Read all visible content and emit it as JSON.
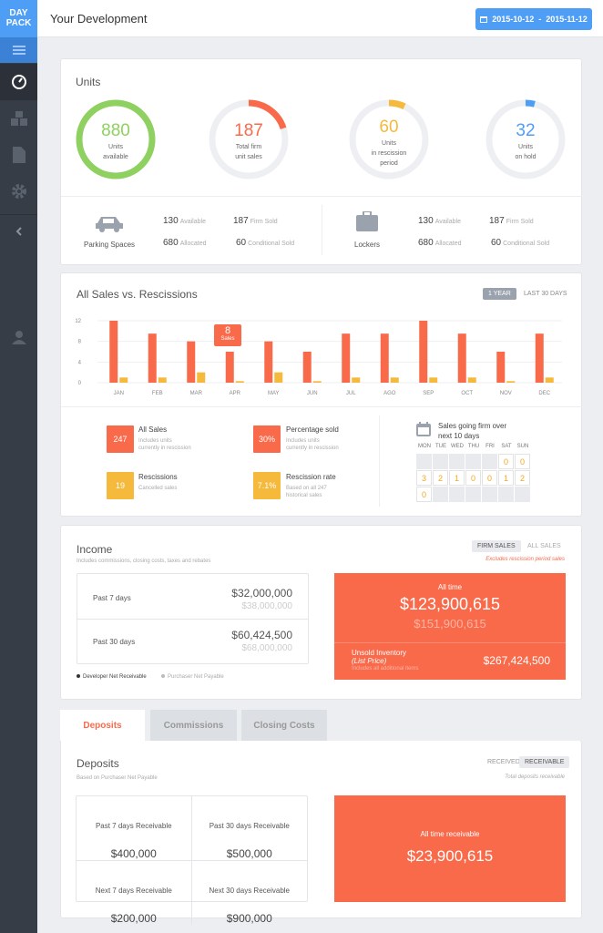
{
  "app": {
    "logo_line1": "DAY",
    "logo_line2": "PACK",
    "page_title": "Your Development",
    "date_range": "2015-10-12  -  2015-11-12"
  },
  "units": {
    "title": "Units",
    "rings": [
      {
        "value": "880",
        "label1": "Units",
        "label2": "available",
        "label3": "",
        "color": "#8fd160",
        "fraction": 1.0
      },
      {
        "value": "187",
        "label1": "Total firm",
        "label2": "unit sales",
        "label3": "",
        "color": "#f96a4b",
        "fraction": 0.2
      },
      {
        "value": "60",
        "label1": "Units",
        "label2": "in rescission",
        "label3": "period",
        "color": "#f5b93c",
        "fraction": 0.07
      },
      {
        "value": "32",
        "label1": "Units",
        "label2": "on hold",
        "label3": "",
        "color": "#4f9ef5",
        "fraction": 0.04
      }
    ],
    "parking": {
      "label": "Parking Spaces",
      "available": "130",
      "available_label": "Available",
      "allocated": "680",
      "allocated_label": "Allocated",
      "firm": "187",
      "firm_label": "Firm Sold",
      "conditional": "60",
      "conditional_label": "Conditional Sold"
    },
    "lockers": {
      "label": "Lockers",
      "available": "130",
      "available_label": "Available",
      "allocated": "680",
      "allocated_label": "Allocated",
      "firm": "187",
      "firm_label": "Firm Sold",
      "conditional": "60",
      "conditional_label": "Conditional Sold"
    }
  },
  "sales": {
    "title": "All Sales vs. Rescissions",
    "btn_year": "1 YEAR",
    "btn_30": "LAST 30 DAYS",
    "tooltip_value": "8",
    "tooltip_label": "Sales",
    "stats": [
      {
        "value": "247",
        "title": "All Sales",
        "sub1": "Includes units",
        "sub2": "currently in rescission",
        "color": "#f96a4b"
      },
      {
        "value": "30%",
        "title": "Percentage sold",
        "sub1": "Includes units",
        "sub2": "currently in rescission",
        "color": "#f96a4b"
      },
      {
        "value": "19",
        "title": "Rescissions",
        "sub1": "Cancelled sales",
        "sub2": "",
        "color": "#f5b93c"
      },
      {
        "value": "7.1%",
        "title": "Rescission rate",
        "sub1": "Based on all 247",
        "sub2": "historical sales",
        "color": "#f5b93c"
      }
    ],
    "calendar": {
      "title1": "Sales going firm over",
      "title2": "next 10 days",
      "days": [
        "MON",
        "TUE",
        "WED",
        "THU",
        "FRI",
        "SAT",
        "SUN"
      ],
      "row1": [
        "",
        "",
        "",
        "",
        "",
        "0",
        "0"
      ],
      "row2": [
        "3",
        "2",
        "1",
        "0",
        "0",
        "1",
        "2"
      ],
      "row3": [
        "0",
        "",
        "",
        "",
        "",
        "",
        ""
      ]
    }
  },
  "chart_data": {
    "type": "bar",
    "categories": [
      "JAN",
      "FEB",
      "MAR",
      "APR",
      "MAY",
      "JUN",
      "JUL",
      "AGO",
      "SEP",
      "OCT",
      "NOV",
      "DEC"
    ],
    "series": [
      {
        "name": "Sales",
        "values": [
          12,
          9.5,
          8,
          6,
          8,
          6,
          9.5,
          9.5,
          12,
          9.5,
          6,
          9.5
        ],
        "color": "#f96a4b"
      },
      {
        "name": "Rescissions",
        "values": [
          1,
          1,
          2,
          0.3,
          2,
          0.3,
          1,
          1,
          1,
          1,
          0.3,
          1
        ],
        "color": "#f5b93c"
      }
    ],
    "ylim": [
      0,
      12
    ],
    "yticks": [
      "0",
      "4",
      "8",
      "12"
    ]
  },
  "income": {
    "title": "Income",
    "subtitle": "Includes commissions, closing costs, taxes and rebates",
    "btn_firm": "FIRM SALES",
    "btn_all": "ALL SALES",
    "excludes": "Excludes rescission period sales",
    "p7_label": "Past 7 days",
    "p7_value": "$32,000,000",
    "p7_sub": "$38,000,000",
    "p30_label": "Past 30 days",
    "p30_value": "$60,424,500",
    "p30_sub": "$68,000,000",
    "legend1": "Developer Net Receivable",
    "legend2": "Purchaser Net Payable",
    "alltime_label": "All time",
    "alltime_value": "$123,900,615",
    "alltime_sub": "$151,900,615",
    "unsold_label": "Unsold Inventory",
    "unsold_sub": "(List Price)",
    "unsold_note": "Includes all additional items",
    "unsold_value": "$267,424,500"
  },
  "tabs": [
    "Deposits",
    "Commissions",
    "Closing Costs"
  ],
  "deposits": {
    "title": "Deposits",
    "subtitle": "Based on Purchaser Net Payable",
    "btn_received": "RECEIVED",
    "btn_receivable": "RECEIVABLE",
    "total_label": "Total deposits receivable",
    "cells": [
      {
        "label": "Past 7 days Receivable",
        "value": "$400,000"
      },
      {
        "label": "Past 30 days Receivable",
        "value": "$500,000"
      },
      {
        "label": "Next 7 days Receivable",
        "value": "$200,000"
      },
      {
        "label": "Next 30 days Receivable",
        "value": "$900,000"
      }
    ],
    "alltime_label": "All time receivable",
    "alltime_value": "$23,900,615"
  },
  "colors": {
    "accent": "#4f9ef5",
    "orange": "#f96a4b",
    "yellow": "#f5b93c",
    "green": "#8fd160",
    "sidebar": "#363d47"
  }
}
